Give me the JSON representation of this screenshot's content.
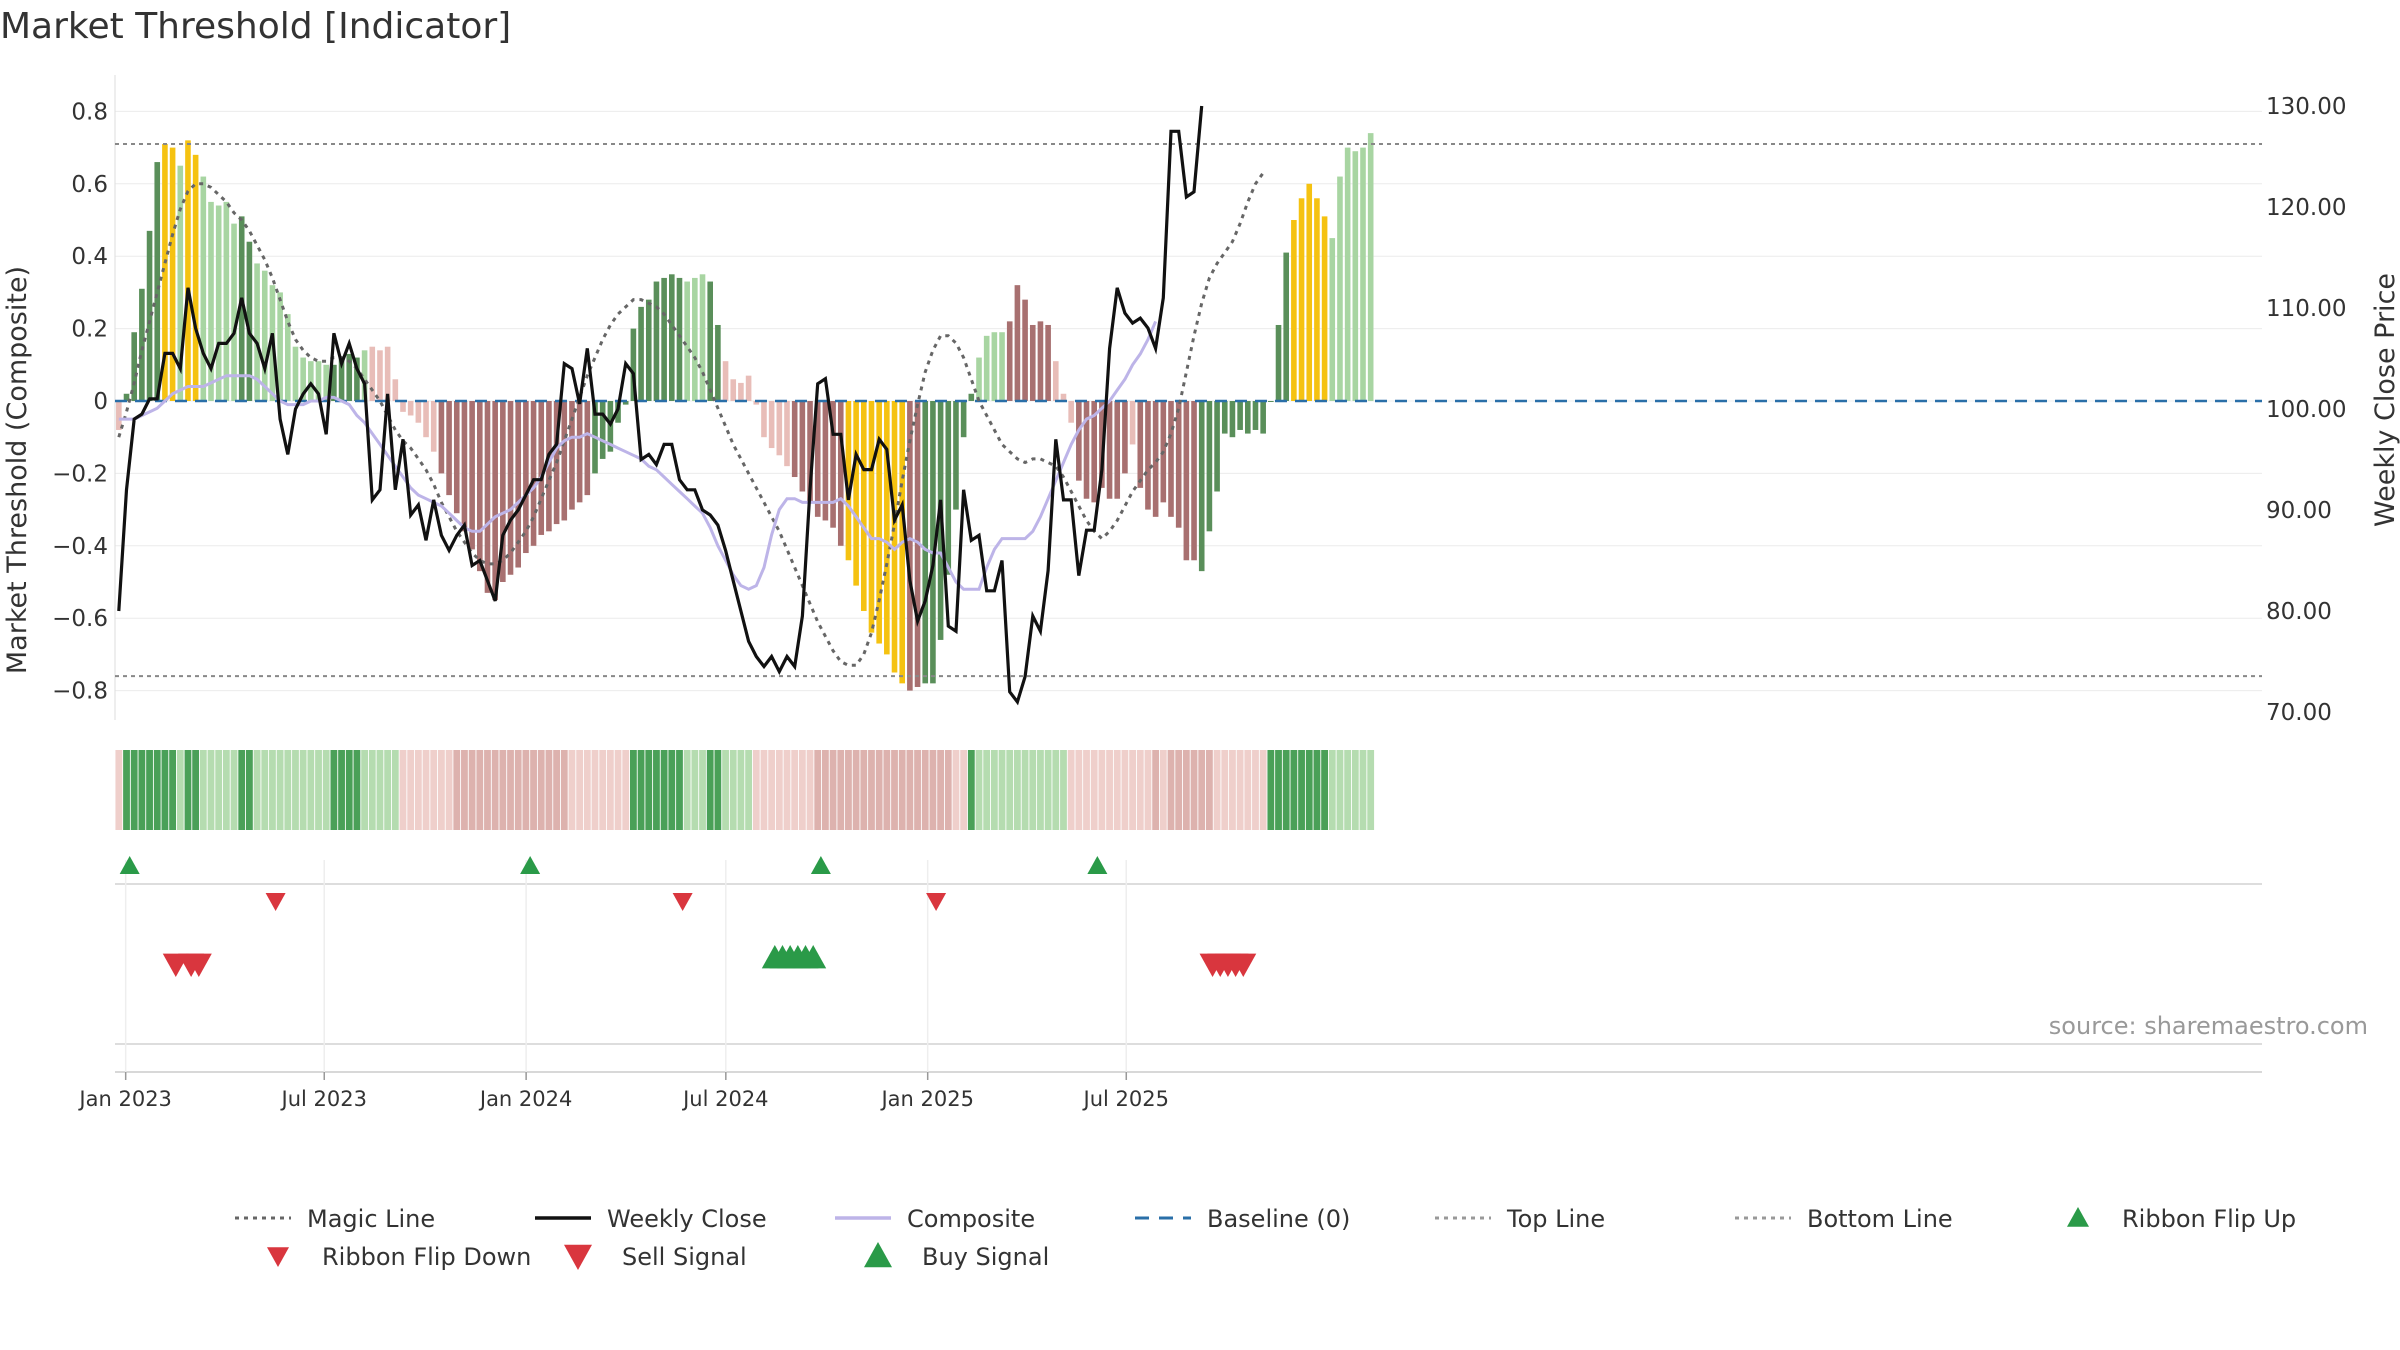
{
  "title": "Market Threshold [Indicator]",
  "source": "source: sharemaestro.com",
  "colors": {
    "strong_green": "#5a8f5a",
    "light_green": "#a8d5a2",
    "strong_red": "#a87070",
    "light_red": "#e8bdb8",
    "gold": "#f5c211",
    "magic_line": "#666666",
    "weekly_close": "#111111",
    "composite": "#bdb4e8",
    "baseline": "#2a6fa8",
    "buy": "#2a9a48",
    "sell": "#d9363e"
  },
  "chart_data": {
    "type": "bar",
    "title": "Market Threshold [Indicator]",
    "ylabel": "Market Threshold (Composite)",
    "y2label": "Weekly Close Price",
    "ylim": [
      -0.88,
      0.9
    ],
    "y2lim": [
      67.0,
      133.0
    ],
    "yticks": [
      "0.8",
      "0.6",
      "0.4",
      "0.2",
      "0",
      "−0.2",
      "−0.4",
      "−0.6",
      "−0.8"
    ],
    "ytick_values": [
      0.8,
      0.6,
      0.4,
      0.2,
      0,
      -0.2,
      -0.4,
      -0.6,
      -0.8
    ],
    "y2ticks": [
      "130.00",
      "120.00",
      "110.00",
      "100.00",
      "90.00",
      "80.00",
      "70.00"
    ],
    "y2tick_values": [
      130,
      120,
      110,
      100,
      90,
      80,
      70
    ],
    "xticks": [
      "Jan 2023",
      "Jul 2023",
      "Jan 2024",
      "Jul 2024",
      "Jan 2025",
      "Jul 2025"
    ],
    "xtick_dates": [
      "2023-01-01",
      "2023-07-01",
      "2024-01-01",
      "2024-07-01",
      "2025-01-01",
      "2025-07-01"
    ],
    "start_date": "2022-12-25",
    "top_line": 0.71,
    "bottom_line": -0.76,
    "composite_bars": [
      -0.08,
      0.02,
      0.19,
      0.31,
      0.47,
      0.66,
      0.71,
      0.7,
      0.65,
      0.72,
      0.68,
      0.62,
      0.55,
      0.54,
      0.55,
      0.49,
      0.51,
      0.44,
      0.38,
      0.36,
      0.32,
      0.3,
      0.24,
      0.15,
      0.12,
      0.11,
      0.11,
      0.1,
      0.1,
      0.12,
      0.13,
      0.12,
      0.14,
      0.15,
      0.14,
      0.15,
      0.06,
      -0.03,
      -0.04,
      -0.06,
      -0.1,
      -0.14,
      -0.2,
      -0.26,
      -0.31,
      -0.36,
      -0.41,
      -0.47,
      -0.53,
      -0.55,
      -0.5,
      -0.48,
      -0.46,
      -0.42,
      -0.4,
      -0.37,
      -0.36,
      -0.34,
      -0.33,
      -0.3,
      -0.28,
      -0.26,
      -0.2,
      -0.16,
      -0.14,
      -0.06,
      -0.01,
      0.2,
      0.26,
      0.28,
      0.33,
      0.34,
      0.35,
      0.34,
      0.33,
      0.34,
      0.35,
      0.33,
      0.21,
      0.11,
      0.06,
      0.05,
      0.07,
      -0.01,
      -0.1,
      -0.13,
      -0.15,
      -0.18,
      -0.21,
      -0.25,
      -0.28,
      -0.32,
      -0.33,
      -0.35,
      -0.4,
      -0.44,
      -0.51,
      -0.58,
      -0.64,
      -0.67,
      -0.7,
      -0.75,
      -0.78,
      -0.8,
      -0.79,
      -0.78,
      -0.78,
      -0.66,
      -0.48,
      -0.3,
      -0.1,
      0.02,
      0.12,
      0.18,
      0.19,
      0.19,
      0.22,
      0.32,
      0.28,
      0.21,
      0.22,
      0.21,
      0.11,
      0.02,
      -0.06,
      -0.22,
      -0.27,
      -0.28,
      -0.24,
      -0.27,
      -0.27,
      -0.2,
      -0.12,
      -0.24,
      -0.3,
      -0.32,
      -0.28,
      -0.32,
      -0.35,
      -0.44,
      -0.44,
      -0.47,
      -0.36,
      -0.25,
      -0.09,
      -0.1,
      -0.08,
      -0.09,
      -0.08,
      -0.09,
      0.0,
      0.21,
      0.41,
      0.5,
      0.56,
      0.6,
      0.56,
      0.51,
      0.45,
      0.62,
      0.7,
      0.69,
      0.7,
      0.74
    ],
    "bar_classes": "RGGGGGYYLYYLLLLLGGLLLLLLLLLLGGGGLRRRRRRRRRRRRRRRRRRRRRRRRRRRRRGGGGGGGGGGGGLLLGGRRRRRRRRRRRRRRRRYYYYYYYYRRGGGGGGGLLLLRRRRRRRRRRRRRRRRRRRRRRRRRGGGGGGGGGGGGYYYYY",
    "magic_line": [
      -0.1,
      -0.03,
      0.05,
      0.14,
      0.22,
      0.3,
      0.38,
      0.46,
      0.53,
      0.58,
      0.6,
      0.6,
      0.59,
      0.57,
      0.55,
      0.52,
      0.5,
      0.47,
      0.43,
      0.39,
      0.34,
      0.28,
      0.22,
      0.17,
      0.14,
      0.12,
      0.11,
      0.11,
      0.12,
      0.12,
      0.11,
      0.09,
      0.06,
      0.03,
      0.0,
      -0.04,
      -0.08,
      -0.11,
      -0.13,
      -0.16,
      -0.19,
      -0.23,
      -0.28,
      -0.32,
      -0.36,
      -0.39,
      -0.42,
      -0.44,
      -0.45,
      -0.45,
      -0.44,
      -0.42,
      -0.39,
      -0.36,
      -0.32,
      -0.27,
      -0.22,
      -0.17,
      -0.11,
      -0.05,
      0.01,
      0.07,
      0.12,
      0.17,
      0.21,
      0.24,
      0.26,
      0.28,
      0.28,
      0.27,
      0.26,
      0.24,
      0.21,
      0.18,
      0.15,
      0.12,
      0.08,
      0.03,
      -0.02,
      -0.07,
      -0.12,
      -0.16,
      -0.2,
      -0.24,
      -0.28,
      -0.32,
      -0.36,
      -0.41,
      -0.46,
      -0.51,
      -0.56,
      -0.61,
      -0.65,
      -0.69,
      -0.72,
      -0.73,
      -0.73,
      -0.7,
      -0.64,
      -0.55,
      -0.45,
      -0.34,
      -0.22,
      -0.11,
      -0.01,
      0.08,
      0.14,
      0.18,
      0.18,
      0.16,
      0.12,
      0.06,
      0.0,
      -0.04,
      -0.08,
      -0.12,
      -0.14,
      -0.16,
      -0.17,
      -0.16,
      -0.16,
      -0.17,
      -0.18,
      -0.21,
      -0.25,
      -0.29,
      -0.33,
      -0.36,
      -0.38,
      -0.36,
      -0.33,
      -0.29,
      -0.25,
      -0.22,
      -0.19,
      -0.17,
      -0.14,
      -0.09,
      -0.02,
      0.08,
      0.18,
      0.27,
      0.34,
      0.38,
      0.41,
      0.44,
      0.49,
      0.55,
      0.6,
      0.63
    ],
    "composite_line": [
      -0.05,
      -0.05,
      -0.05,
      -0.04,
      -0.03,
      -0.02,
      0.0,
      0.02,
      0.03,
      0.04,
      0.04,
      0.04,
      0.05,
      0.06,
      0.07,
      0.07,
      0.07,
      0.07,
      0.06,
      0.04,
      0.02,
      0.0,
      -0.01,
      -0.01,
      -0.01,
      0.0,
      0.0,
      0.01,
      0.01,
      0.0,
      -0.01,
      -0.04,
      -0.06,
      -0.09,
      -0.12,
      -0.15,
      -0.18,
      -0.21,
      -0.24,
      -0.26,
      -0.27,
      -0.28,
      -0.29,
      -0.31,
      -0.33,
      -0.35,
      -0.36,
      -0.36,
      -0.34,
      -0.32,
      -0.31,
      -0.3,
      -0.28,
      -0.26,
      -0.24,
      -0.21,
      -0.17,
      -0.13,
      -0.11,
      -0.1,
      -0.1,
      -0.09,
      -0.1,
      -0.11,
      -0.12,
      -0.13,
      -0.14,
      -0.15,
      -0.16,
      -0.18,
      -0.19,
      -0.21,
      -0.23,
      -0.25,
      -0.27,
      -0.29,
      -0.31,
      -0.35,
      -0.4,
      -0.44,
      -0.48,
      -0.51,
      -0.52,
      -0.51,
      -0.46,
      -0.37,
      -0.3,
      -0.27,
      -0.27,
      -0.28,
      -0.28,
      -0.28,
      -0.28,
      -0.28,
      -0.27,
      -0.29,
      -0.32,
      -0.35,
      -0.38,
      -0.38,
      -0.39,
      -0.41,
      -0.39,
      -0.38,
      -0.39,
      -0.41,
      -0.42,
      -0.42,
      -0.46,
      -0.5,
      -0.52,
      -0.52,
      -0.52,
      -0.46,
      -0.41,
      -0.38,
      -0.38,
      -0.38,
      -0.38,
      -0.36,
      -0.32,
      -0.27,
      -0.22,
      -0.17,
      -0.12,
      -0.08,
      -0.05,
      -0.04,
      -0.02,
      0.0,
      0.03,
      0.06,
      0.1,
      0.13,
      0.17,
      0.22
    ],
    "weekly_close": [
      80,
      92,
      99,
      99.5,
      101,
      101,
      105.5,
      105.5,
      104,
      112,
      108,
      105.5,
      104,
      106.5,
      106.5,
      107.5,
      111,
      107.5,
      106.5,
      104,
      107.5,
      99,
      95.5,
      100,
      101.5,
      102.5,
      101.5,
      97.5,
      107.5,
      104.5,
      106.5,
      104,
      102.5,
      91,
      92,
      101.5,
      92,
      97,
      89.5,
      90.5,
      87,
      91,
      87.5,
      86,
      87.5,
      88.5,
      84.5,
      85,
      83,
      81,
      87.5,
      89,
      90,
      91.5,
      93,
      93,
      95.5,
      96.5,
      104.5,
      104,
      100.5,
      106,
      99.5,
      99.5,
      98.5,
      100,
      104.5,
      103.5,
      95,
      95.5,
      94.5,
      96.5,
      96.5,
      93,
      92,
      92,
      90,
      89.5,
      88.5,
      86,
      83,
      80,
      77,
      75.5,
      74.5,
      75.5,
      74,
      75.5,
      74.5,
      79.5,
      92,
      102.5,
      103,
      97.5,
      97.5,
      91,
      95.5,
      94,
      94,
      97,
      96,
      89,
      90.5,
      83,
      79,
      81,
      84.5,
      91,
      78.5,
      78,
      92,
      87,
      87.5,
      82,
      82,
      85,
      72,
      71,
      73.5,
      79.5,
      78,
      84,
      97,
      91,
      91,
      83.5,
      88,
      88,
      94,
      106,
      112,
      109.5,
      108.5,
      109,
      108,
      106,
      111,
      127.5,
      127.5,
      121,
      121.5,
      130
    ],
    "ribbon_flip_up": [
      "2023-01-01",
      "2024-01-01",
      "2024-09-22",
      "2025-06-01"
    ],
    "ribbon_flip_down": [
      "2023-05-14",
      "2024-05-19",
      "2025-01-05"
    ],
    "sell_signal": [
      "2023-02-12",
      "2023-02-26",
      "2023-03-05",
      "2025-09-14",
      "2025-09-21",
      "2025-09-28",
      "2025-10-05",
      "2025-10-12"
    ],
    "buy_signal": [
      "2024-08-11",
      "2024-08-18",
      "2024-08-25",
      "2024-09-01",
      "2024-09-08",
      "2024-09-15"
    ]
  },
  "legend": [
    {
      "label": "Magic Line",
      "style": "dotted",
      "color": "#666666"
    },
    {
      "label": "Weekly Close",
      "style": "solid",
      "color": "#111111"
    },
    {
      "label": "Composite",
      "style": "solid",
      "color": "#bdb4e8"
    },
    {
      "label": "Baseline (0)",
      "style": "dashed",
      "color": "#2a6fa8"
    },
    {
      "label": "Top Line",
      "style": "dotted",
      "color": "#999999"
    },
    {
      "label": "Bottom Line",
      "style": "dotted",
      "color": "#999999"
    },
    {
      "label": "Ribbon Flip Up",
      "style": "tri-up",
      "color": "#2a9a48"
    },
    {
      "label": "Ribbon Flip Down",
      "style": "tri-down-small",
      "color": "#d9363e"
    },
    {
      "label": "Sell Signal",
      "style": "tri-down",
      "color": "#d9363e"
    },
    {
      "label": "Buy Signal",
      "style": "tri-up-big",
      "color": "#2a9a48"
    }
  ]
}
